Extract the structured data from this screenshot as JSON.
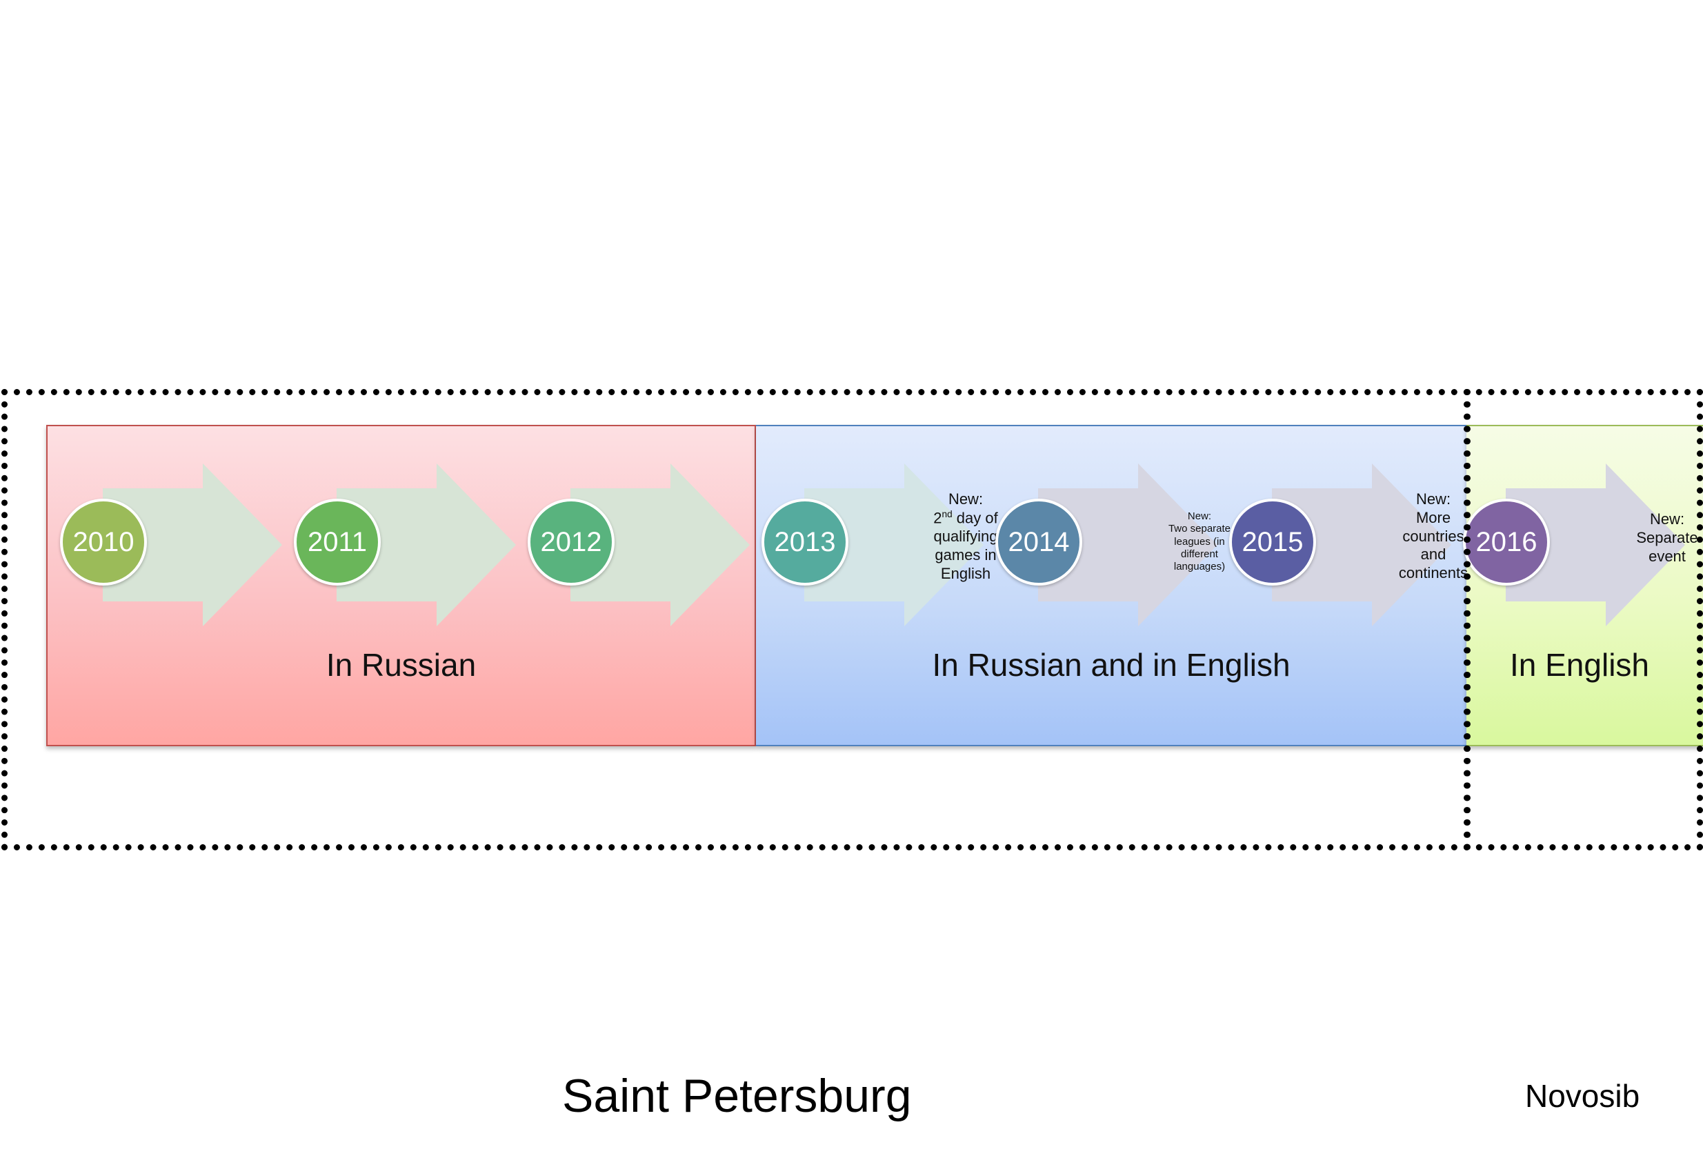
{
  "bands": [
    {
      "key": "russian",
      "caption": "In Russian",
      "color": "#c0504d"
    },
    {
      "key": "both",
      "caption": "In Russian and in English",
      "color": "#4f81bd"
    },
    {
      "key": "english",
      "caption": "In English",
      "color": "#9bbb59"
    }
  ],
  "timeline": [
    {
      "year": "2010",
      "color": "#9bbb59",
      "note": []
    },
    {
      "year": "2011",
      "color": "#6ab65a",
      "note": []
    },
    {
      "year": "2012",
      "color": "#59b37e",
      "note": []
    },
    {
      "year": "2013",
      "color": "#55ab9e",
      "note": [
        "New:",
        "2^nd day of",
        "qualifying",
        "games in",
        "English"
      ]
    },
    {
      "year": "2014",
      "color": "#5b87a8",
      "note": [
        "New:",
        "Two separate",
        "leagues (in",
        "different",
        "languages)"
      ]
    },
    {
      "year": "2015",
      "color": "#5a5ea3",
      "note": [
        "New:",
        "More",
        "countries",
        "and",
        "continents"
      ]
    },
    {
      "year": "2016",
      "color": "#8064a2",
      "note": [
        "New:",
        "Separate",
        "event"
      ]
    }
  ],
  "regions": {
    "saint_petersburg": "Saint Petersburg",
    "novosibirsk": "Novosib"
  },
  "colors": {
    "arrow_green": "#d7e4d6",
    "arrow_lilac": "#d6d6e2",
    "dotted_border": "#000000"
  }
}
